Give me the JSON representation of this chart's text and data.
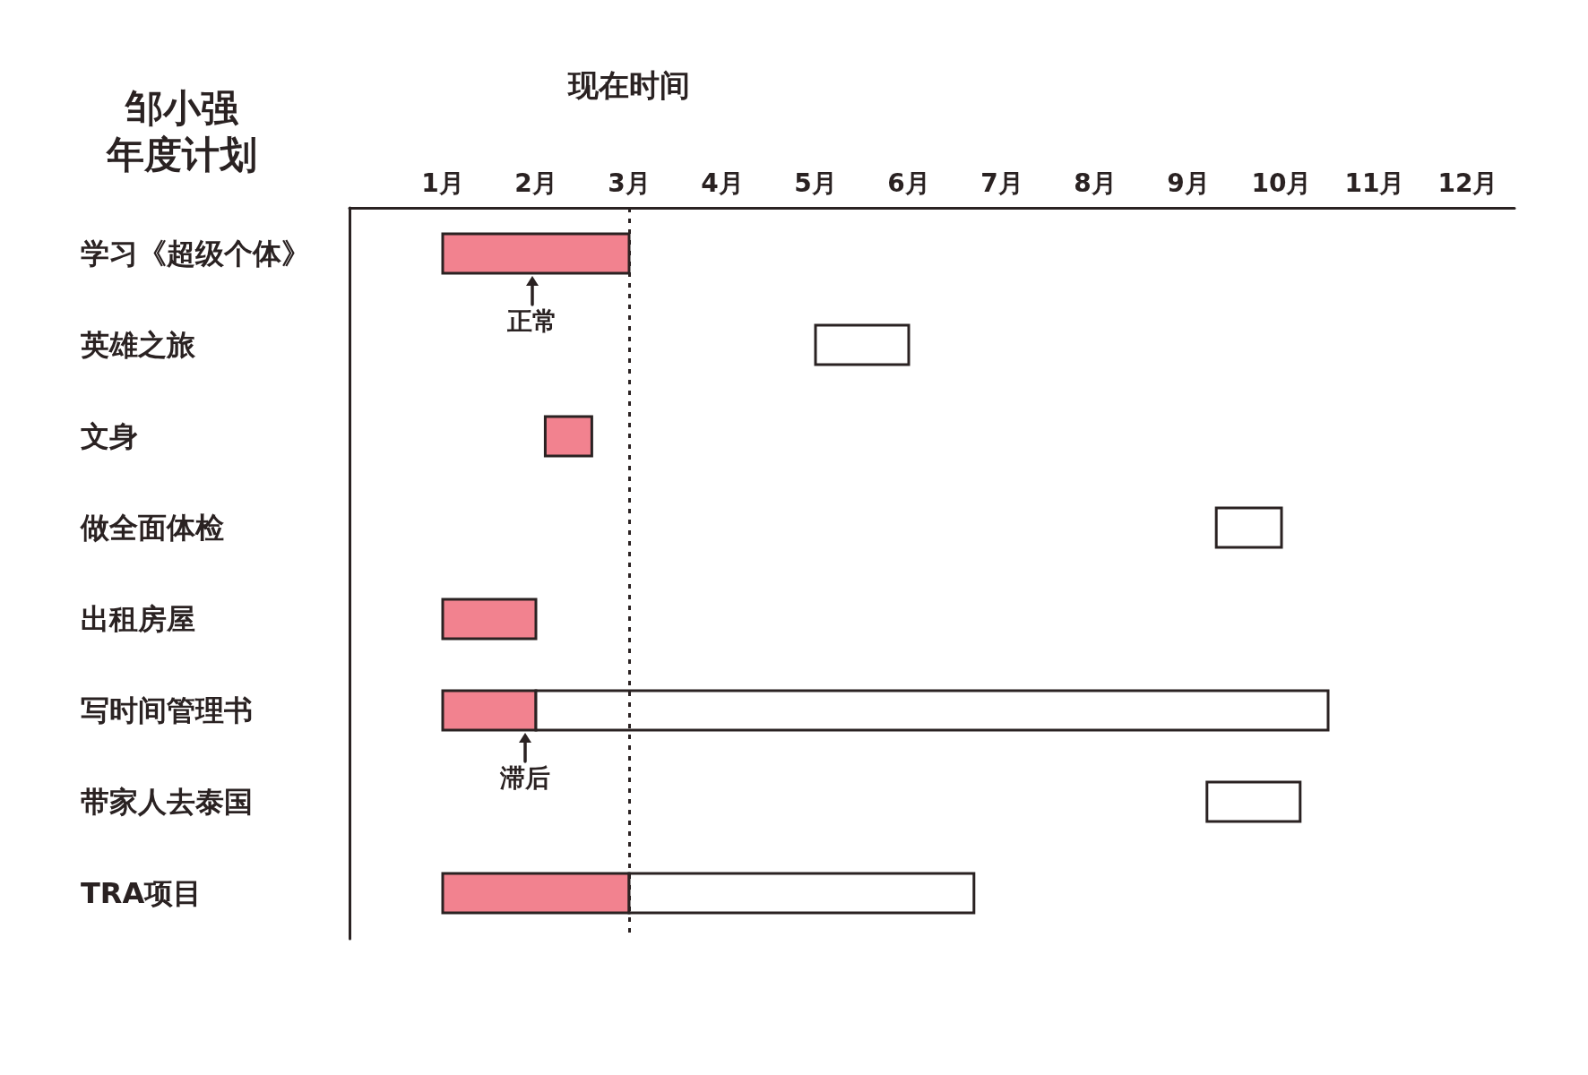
{
  "chart_data": {
    "type": "bar",
    "orientation": "horizontal",
    "title": "邹小强",
    "subtitle": "年度计划",
    "categories": [
      "学习《超级个体》",
      "英雄之旅",
      "文身",
      "做全面体检",
      "出租房屋",
      "写时间管理书",
      "带家人去泰国",
      "TRA项目"
    ],
    "series": [
      {
        "color": "#f2828f",
        "base": [
          1,
          null,
          2.1,
          null,
          1,
          1,
          null,
          1
        ],
        "values": [
          2,
          null,
          0.5,
          null,
          1,
          1,
          null,
          2
        ]
      },
      {
        "color": "#ffffff",
        "base": [
          null,
          5,
          null,
          9.3,
          null,
          2,
          9.2,
          3
        ],
        "values": [
          null,
          1,
          null,
          0.7,
          null,
          8.5,
          1,
          3.7
        ]
      }
    ],
    "xlim": [
      0,
      12.5
    ],
    "xticks": [
      {
        "value": 1,
        "label": "1月"
      },
      {
        "value": 2,
        "label": "2月"
      },
      {
        "value": 3,
        "label": "3月"
      },
      {
        "value": 4,
        "label": "4月"
      },
      {
        "value": 5,
        "label": "5月"
      },
      {
        "value": 6,
        "label": "6月"
      },
      {
        "value": 7,
        "label": "7月"
      },
      {
        "value": 8,
        "label": "8月"
      },
      {
        "value": 9,
        "label": "9月"
      },
      {
        "value": 10,
        "label": "10月"
      },
      {
        "value": 11,
        "label": "11月"
      },
      {
        "value": 12,
        "label": "12月"
      }
    ],
    "ref_lines": [
      {
        "axis": "x",
        "value": 3,
        "label": "现在时间",
        "line_style": "dotted"
      }
    ],
    "annotations": [
      "正常",
      "滞后"
    ]
  }
}
